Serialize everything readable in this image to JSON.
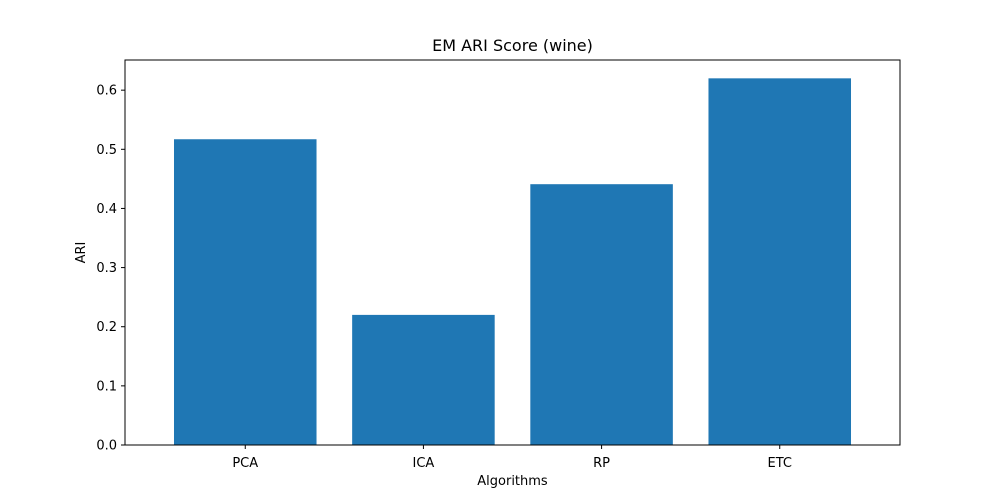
{
  "chart_data": {
    "type": "bar",
    "title": "EM ARI Score (wine)",
    "xlabel": "Algorithms",
    "ylabel": "ARI",
    "categories": [
      "PCA",
      "ICA",
      "RP",
      "ETC"
    ],
    "values": [
      0.517,
      0.22,
      0.441,
      0.62
    ],
    "ylim": [
      0,
      0.651
    ],
    "yticks": [
      0.0,
      0.1,
      0.2,
      0.3,
      0.4,
      0.5,
      0.6
    ],
    "ytick_labels": [
      "0.0",
      "0.1",
      "0.2",
      "0.3",
      "0.4",
      "0.5",
      "0.6"
    ],
    "bar_color": "#1f77b4",
    "grid": false,
    "legend": "none"
  }
}
